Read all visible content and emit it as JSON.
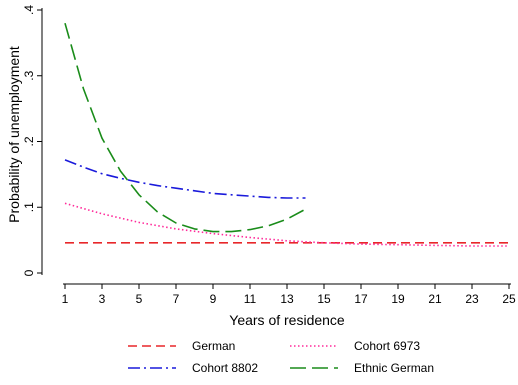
{
  "chart_data": {
    "type": "line",
    "xlabel": "Years of residence",
    "ylabel": "Probability of unemployment",
    "xlim": [
      1,
      25
    ],
    "ylim": [
      0,
      0.4
    ],
    "x_ticks": [
      1,
      3,
      5,
      7,
      9,
      11,
      13,
      15,
      17,
      19,
      21,
      23,
      25
    ],
    "x_tick_labels": [
      "1",
      "3",
      "5",
      "7",
      "9",
      "11",
      "13",
      "15",
      "17",
      "19",
      "21",
      "23",
      "25"
    ],
    "y_ticks": [
      0,
      0.1,
      0.2,
      0.3,
      0.4
    ],
    "y_tick_labels": [
      "0",
      ".1",
      ".2",
      ".3",
      ".4"
    ],
    "grid": false,
    "legend_position": "bottom",
    "series": [
      {
        "name": "German",
        "color": "#e8272a",
        "dash": "dashed",
        "x": [
          1,
          25
        ],
        "values": [
          0.046,
          0.046
        ]
      },
      {
        "name": "Cohort 6973",
        "color": "#ff2a9a",
        "dash": "dotted",
        "x": [
          1,
          3,
          5,
          7,
          9,
          11,
          13,
          15,
          17,
          19,
          21,
          23,
          25
        ],
        "values": [
          0.106,
          0.09,
          0.077,
          0.067,
          0.06,
          0.054,
          0.049,
          0.046,
          0.044,
          0.043,
          0.042,
          0.041,
          0.041
        ]
      },
      {
        "name": "Cohort 8802",
        "color": "#1a1adb",
        "dash": "dashdot",
        "x": [
          1,
          2,
          3,
          4,
          5,
          6,
          7,
          8,
          9,
          10,
          11,
          12,
          13,
          14
        ],
        "values": [
          0.172,
          0.161,
          0.151,
          0.144,
          0.138,
          0.133,
          0.129,
          0.125,
          0.121,
          0.119,
          0.117,
          0.115,
          0.114,
          0.114
        ]
      },
      {
        "name": "Ethnic German",
        "color": "#1a8c1a",
        "dash": "longdash",
        "x": [
          1,
          2,
          3,
          4,
          5,
          6,
          7,
          8,
          9,
          10,
          11,
          12,
          13,
          14
        ],
        "values": [
          0.38,
          0.28,
          0.205,
          0.155,
          0.119,
          0.093,
          0.076,
          0.067,
          0.063,
          0.063,
          0.066,
          0.072,
          0.082,
          0.097
        ]
      }
    ]
  }
}
